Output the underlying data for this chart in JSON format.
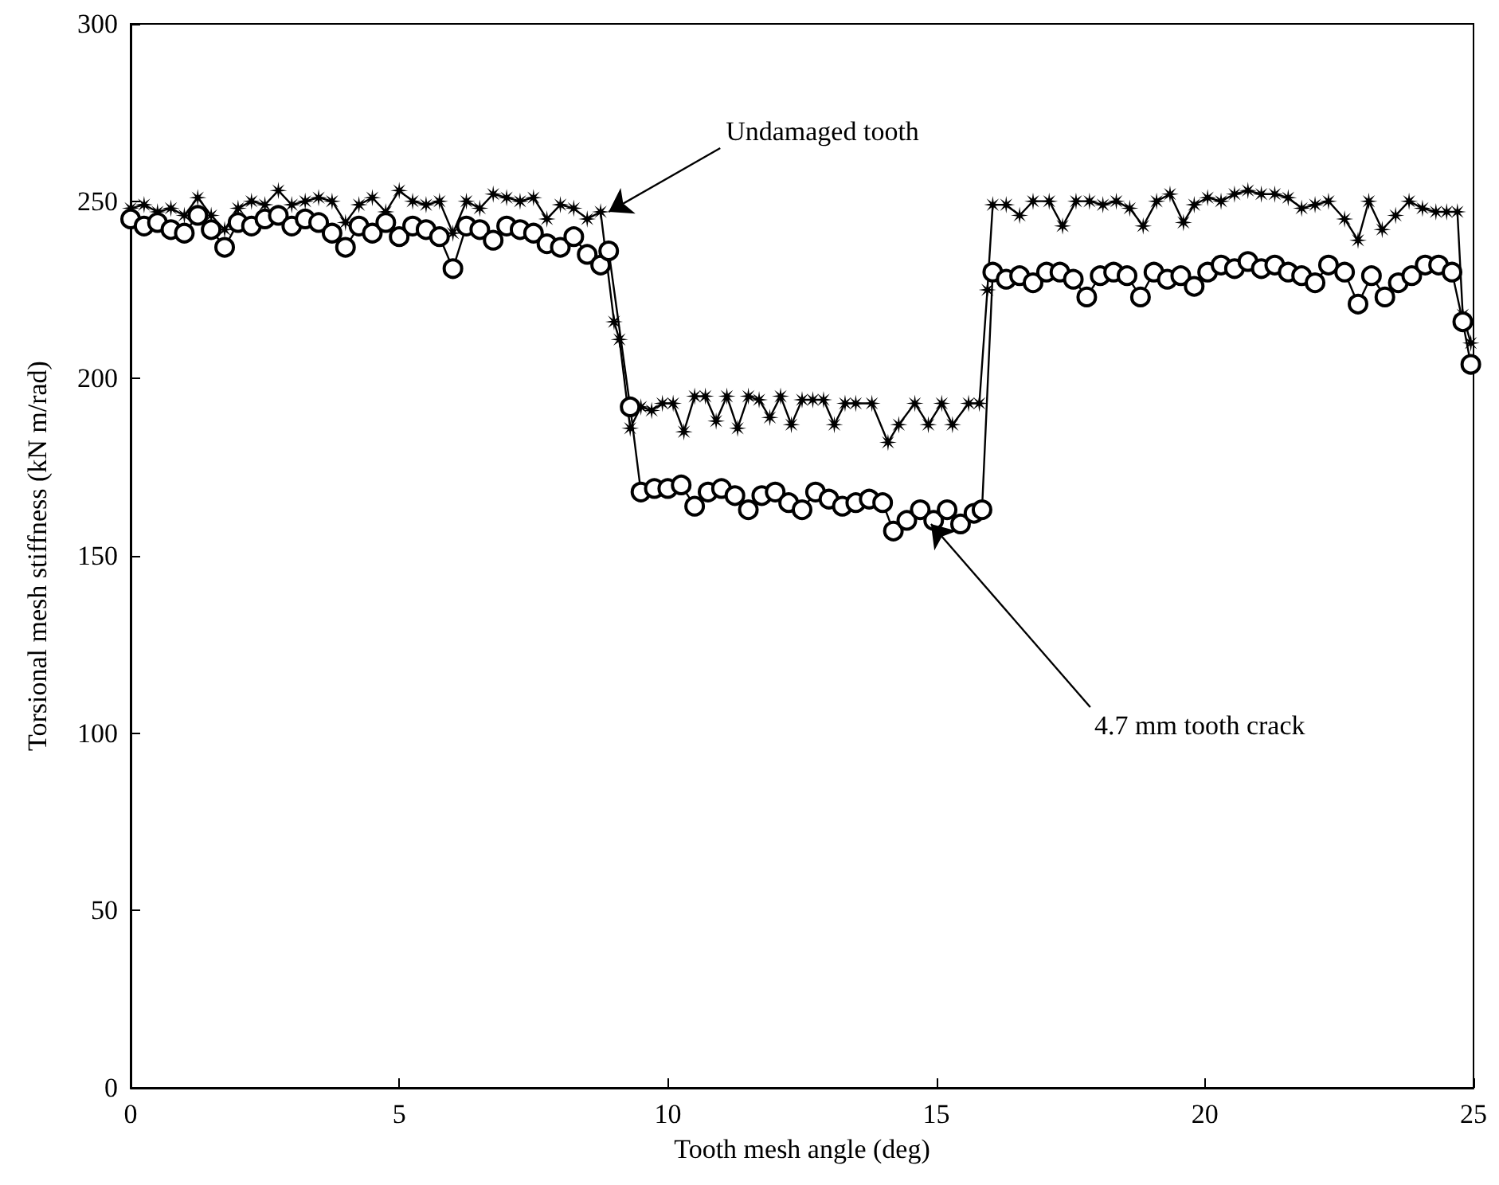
{
  "chart_data": {
    "type": "line",
    "xlabel": "Tooth mesh angle (deg)",
    "ylabel": "Torsional mesh stiffness (kN m/rad)",
    "xlim": [
      0,
      25
    ],
    "xticks": [
      0,
      5,
      10,
      15,
      20,
      25
    ],
    "ylim": [
      0,
      300
    ],
    "yticks": [
      0,
      50,
      100,
      150,
      200,
      250,
      300
    ],
    "grid": false,
    "line_style": "solid",
    "series": [
      {
        "color": "#000000",
        "marker": "star",
        "x": [
          0,
          0.25,
          0.5,
          0.75,
          1.0,
          1.25,
          1.5,
          1.75,
          2.0,
          2.25,
          2.5,
          2.75,
          3.0,
          3.25,
          3.5,
          3.75,
          4.0,
          4.25,
          4.5,
          4.75,
          5.0,
          5.25,
          5.5,
          5.75,
          6.0,
          6.25,
          6.5,
          6.75,
          7.0,
          7.25,
          7.5,
          7.75,
          8.0,
          8.25,
          8.5,
          8.75,
          9.0,
          9.1,
          9.3,
          9.5,
          9.7,
          9.9,
          10.1,
          10.3,
          10.5,
          10.7,
          10.9,
          11.1,
          11.3,
          11.5,
          11.7,
          11.9,
          12.1,
          12.3,
          12.5,
          12.7,
          12.9,
          13.1,
          13.3,
          13.5,
          13.8,
          14.1,
          14.3,
          14.6,
          14.85,
          15.1,
          15.3,
          15.6,
          15.8,
          15.95,
          16.05,
          16.3,
          16.55,
          16.8,
          17.1,
          17.35,
          17.6,
          17.85,
          18.1,
          18.35,
          18.6,
          18.85,
          19.1,
          19.35,
          19.6,
          19.8,
          20.05,
          20.3,
          20.55,
          20.8,
          21.05,
          21.3,
          21.55,
          21.8,
          22.05,
          22.3,
          22.6,
          22.85,
          23.05,
          23.3,
          23.55,
          23.8,
          24.05,
          24.3,
          24.5,
          24.7,
          24.8,
          24.95
        ],
        "values": [
          248,
          249,
          247,
          248,
          246,
          251,
          246,
          242,
          248,
          250,
          249,
          253,
          249,
          250,
          251,
          250,
          244,
          249,
          251,
          247,
          253,
          250,
          249,
          250,
          241,
          250,
          248,
          252,
          251,
          250,
          251,
          245,
          249,
          248,
          245,
          247,
          216,
          211,
          186,
          192,
          191,
          193,
          193,
          185,
          195,
          195,
          188,
          195,
          186,
          195,
          194,
          189,
          195,
          187,
          194,
          194,
          194,
          187,
          193,
          193,
          193,
          182,
          187,
          193,
          187,
          193,
          187,
          193,
          193,
          225,
          249,
          249,
          246,
          250,
          250,
          243,
          250,
          250,
          249,
          250,
          248,
          243,
          250,
          252,
          244,
          249,
          251,
          250,
          252,
          253,
          252,
          252,
          251,
          248,
          249,
          250,
          245,
          239,
          250,
          242,
          246,
          250,
          248,
          247,
          247,
          247,
          218,
          210
        ]
      },
      {
        "color": "#000000",
        "marker": "circle",
        "x": [
          0,
          0.25,
          0.5,
          0.75,
          1.0,
          1.25,
          1.5,
          1.75,
          2.0,
          2.25,
          2.5,
          2.75,
          3.0,
          3.25,
          3.5,
          3.75,
          4.0,
          4.25,
          4.5,
          4.75,
          5.0,
          5.25,
          5.5,
          5.75,
          6.0,
          6.25,
          6.5,
          6.75,
          7.0,
          7.25,
          7.5,
          7.75,
          8.0,
          8.25,
          8.5,
          8.75,
          8.9,
          9.3,
          9.5,
          9.75,
          10.0,
          10.25,
          10.5,
          10.75,
          11.0,
          11.25,
          11.5,
          11.75,
          12.0,
          12.25,
          12.5,
          12.75,
          13.0,
          13.25,
          13.5,
          13.75,
          14.0,
          14.2,
          14.45,
          14.7,
          14.95,
          15.2,
          15.45,
          15.7,
          15.85,
          16.05,
          16.3,
          16.55,
          16.8,
          17.05,
          17.3,
          17.55,
          17.8,
          18.05,
          18.3,
          18.55,
          18.8,
          19.05,
          19.3,
          19.55,
          19.8,
          20.05,
          20.3,
          20.55,
          20.8,
          21.05,
          21.3,
          21.55,
          21.8,
          22.05,
          22.3,
          22.6,
          22.85,
          23.1,
          23.35,
          23.6,
          23.85,
          24.1,
          24.35,
          24.6,
          24.8,
          24.95
        ],
        "values": [
          245,
          243,
          244,
          242,
          241,
          246,
          242,
          237,
          244,
          243,
          245,
          246,
          243,
          245,
          244,
          241,
          237,
          243,
          241,
          244,
          240,
          243,
          242,
          240,
          231,
          243,
          242,
          239,
          243,
          242,
          241,
          238,
          237,
          240,
          235,
          232,
          236,
          192,
          168,
          169,
          169,
          170,
          164,
          168,
          169,
          167,
          163,
          167,
          168,
          165,
          163,
          168,
          166,
          164,
          165,
          166,
          165,
          157,
          160,
          163,
          160,
          163,
          159,
          162,
          163,
          230,
          228,
          229,
          227,
          230,
          230,
          228,
          223,
          229,
          230,
          229,
          223,
          230,
          228,
          229,
          226,
          230,
          232,
          231,
          233,
          231,
          232,
          230,
          229,
          227,
          232,
          230,
          221,
          229,
          223,
          227,
          229,
          232,
          232,
          230,
          216,
          204
        ]
      }
    ],
    "annotations": [
      {
        "text": "Undamaged tooth",
        "x": 8.9,
        "y": 247
      },
      {
        "text": "4.7 mm tooth crack",
        "x": 14.9,
        "y": 159
      }
    ]
  }
}
